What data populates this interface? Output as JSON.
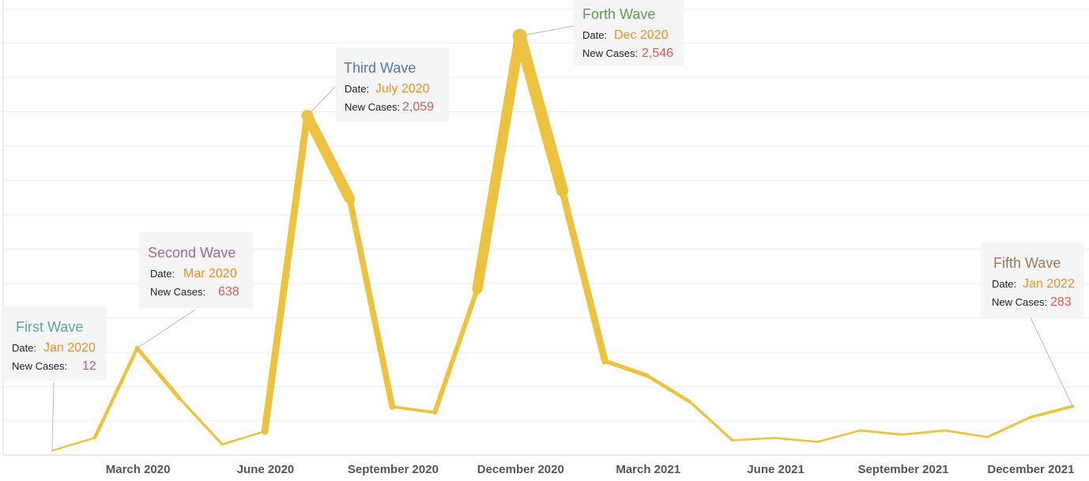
{
  "chart_data": {
    "type": "line",
    "title": "",
    "xlabel": "",
    "ylabel": "",
    "ylim": [
      0,
      2650
    ],
    "grid": true,
    "legend": "none",
    "line_color": "#EDC240",
    "x_ticks": [
      {
        "date": "2020-03",
        "label": "March 2020"
      },
      {
        "date": "2020-06",
        "label": "June 2020"
      },
      {
        "date": "2020-09",
        "label": "September 2020"
      },
      {
        "date": "2020-12",
        "label": "December 2020"
      },
      {
        "date": "2021-03",
        "label": "March 2021"
      },
      {
        "date": "2021-06",
        "label": "June 2021"
      },
      {
        "date": "2021-09",
        "label": "September 2021"
      },
      {
        "date": "2021-12",
        "label": "December 2021"
      }
    ],
    "series": [
      {
        "points": [
          {
            "date": "2020-01",
            "value": 12
          },
          {
            "date": "2020-02",
            "value": 90
          },
          {
            "date": "2020-03",
            "value": 638
          },
          {
            "date": "2020-04",
            "value": 330
          },
          {
            "date": "2020-05",
            "value": 50
          },
          {
            "date": "2020-06",
            "value": 130
          },
          {
            "date": "2020-07",
            "value": 2059
          },
          {
            "date": "2020-08",
            "value": 1550
          },
          {
            "date": "2020-09",
            "value": 280
          },
          {
            "date": "2020-10",
            "value": 245
          },
          {
            "date": "2020-11",
            "value": 1000
          },
          {
            "date": "2020-12",
            "value": 2546
          },
          {
            "date": "2021-01",
            "value": 1600
          },
          {
            "date": "2021-02",
            "value": 560
          },
          {
            "date": "2021-03",
            "value": 470
          },
          {
            "date": "2021-04",
            "value": 310
          },
          {
            "date": "2021-05",
            "value": 75
          },
          {
            "date": "2021-06",
            "value": 90
          },
          {
            "date": "2021-07",
            "value": 65
          },
          {
            "date": "2021-08",
            "value": 135
          },
          {
            "date": "2021-09",
            "value": 110
          },
          {
            "date": "2021-10",
            "value": 135
          },
          {
            "date": "2021-11",
            "value": 95
          },
          {
            "date": "2021-12",
            "value": 215
          },
          {
            "date": "2022-01",
            "value": 283
          }
        ]
      }
    ],
    "annotations": [
      {
        "id": "first",
        "title": "First Wave",
        "title_color": "#5DA5A0",
        "date_key": "Date:",
        "date": "Jan 2020",
        "cases_key": "New Cases:",
        "cases": "12",
        "point_date": "2020-01"
      },
      {
        "id": "second",
        "title": "Second Wave",
        "title_color": "#A0689A",
        "date_key": "Date:",
        "date": "Mar 2020",
        "cases_key": "New Cases:",
        "cases": "638",
        "point_date": "2020-03"
      },
      {
        "id": "third",
        "title": "Third Wave",
        "title_color": "#4E79A7",
        "date_key": "Date:",
        "date": "July 2020",
        "cases_key": "New Cases:",
        "cases": "2,059",
        "point_date": "2020-07"
      },
      {
        "id": "forth",
        "title": "Forth Wave",
        "title_color": "#59A14F",
        "date_key": "Date:",
        "date": "Dec 2020",
        "cases_key": "New Cases:",
        "cases": "2,546",
        "point_date": "2020-12"
      },
      {
        "id": "fifth",
        "title": "Fifth Wave",
        "title_color": "#9C755F",
        "date_key": "Date:",
        "date": "Jan 2022",
        "cases_key": "New Cases:",
        "cases": "283",
        "point_date": "2022-01"
      }
    ],
    "colors": {
      "date_value": "#F28E2B",
      "cases_value": "#E15759",
      "annotation_bg": "#F5F5F5",
      "gridline": "#EEEEEE",
      "connector": "#BBBBBB"
    }
  }
}
